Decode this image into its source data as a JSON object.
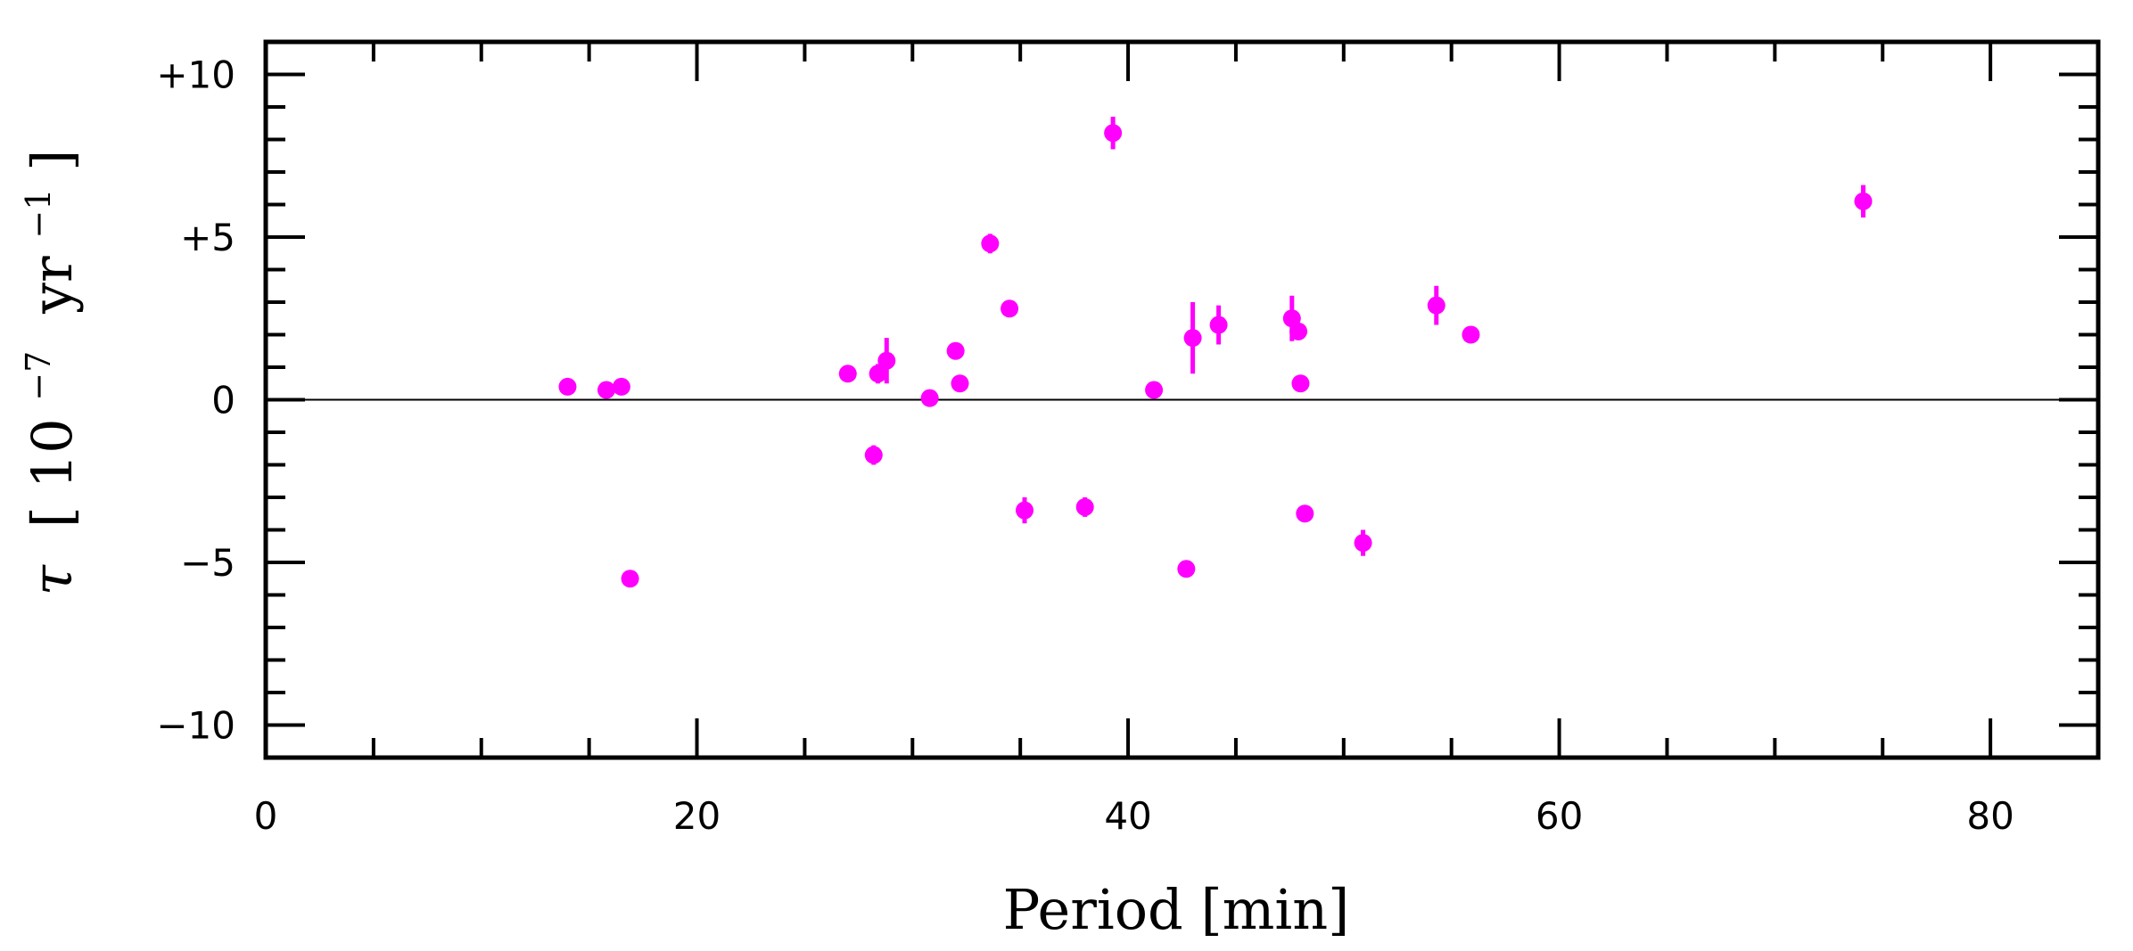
{
  "chart_data": {
    "type": "scatter",
    "xlabel": "Period [min]",
    "ylabel_symbol": "τ",
    "ylabel_open": "[",
    "ylabel_base": "10",
    "ylabel_exp": "−7",
    "ylabel_unit": "yr",
    "ylabel_unit_exp": "−1",
    "ylabel_close": "]",
    "xlim": [
      0,
      85
    ],
    "ylim": [
      -11,
      11
    ],
    "x_ticks": [
      {
        "value": 0,
        "label": "0"
      },
      {
        "value": 20,
        "label": "20"
      },
      {
        "value": 40,
        "label": "40"
      },
      {
        "value": 60,
        "label": "60"
      },
      {
        "value": 80,
        "label": "80"
      }
    ],
    "y_ticks": [
      {
        "value": 10,
        "label": "+10"
      },
      {
        "value": 5,
        "label": "+5"
      },
      {
        "value": 0,
        "label": "0"
      },
      {
        "value": -5,
        "label": "−5"
      },
      {
        "value": -10,
        "label": "−10"
      }
    ],
    "x_minor_step": 5,
    "y_minor_step": 1,
    "reference_line_y": 0,
    "marker_color": "#ff00ff",
    "points": [
      {
        "x": 14.0,
        "y": 0.4,
        "err": 0.1
      },
      {
        "x": 15.8,
        "y": 0.3,
        "err": 0.1
      },
      {
        "x": 16.5,
        "y": 0.4,
        "err": 0.1
      },
      {
        "x": 16.9,
        "y": -5.5,
        "err": 0.2
      },
      {
        "x": 27.0,
        "y": 0.8,
        "err": 0.1
      },
      {
        "x": 28.2,
        "y": -1.7,
        "err": 0.3
      },
      {
        "x": 28.4,
        "y": 0.8,
        "err": 0.3
      },
      {
        "x": 28.8,
        "y": 1.2,
        "err": 0.7
      },
      {
        "x": 30.8,
        "y": 0.05,
        "err": 0.1
      },
      {
        "x": 32.0,
        "y": 1.5,
        "err": 0.1
      },
      {
        "x": 32.2,
        "y": 0.5,
        "err": 0.1
      },
      {
        "x": 33.6,
        "y": 4.8,
        "err": 0.3
      },
      {
        "x": 34.5,
        "y": 2.8,
        "err": 0.1
      },
      {
        "x": 35.2,
        "y": -3.4,
        "err": 0.4
      },
      {
        "x": 38.0,
        "y": -3.3,
        "err": 0.3
      },
      {
        "x": 39.3,
        "y": 8.2,
        "err": 0.5
      },
      {
        "x": 41.2,
        "y": 0.3,
        "err": 0.1
      },
      {
        "x": 42.7,
        "y": -5.2,
        "err": 0.2
      },
      {
        "x": 43.0,
        "y": 1.9,
        "err": 1.1
      },
      {
        "x": 44.2,
        "y": 2.3,
        "err": 0.6
      },
      {
        "x": 47.6,
        "y": 2.5,
        "err": 0.7
      },
      {
        "x": 47.9,
        "y": 2.1,
        "err": 0.2
      },
      {
        "x": 48.0,
        "y": 0.5,
        "err": 0.1
      },
      {
        "x": 48.2,
        "y": -3.5,
        "err": 0.2
      },
      {
        "x": 50.9,
        "y": -4.4,
        "err": 0.4
      },
      {
        "x": 54.3,
        "y": 2.9,
        "err": 0.6
      },
      {
        "x": 55.9,
        "y": 2.0,
        "err": 0.2
      },
      {
        "x": 74.1,
        "y": 6.1,
        "err": 0.5
      }
    ]
  }
}
